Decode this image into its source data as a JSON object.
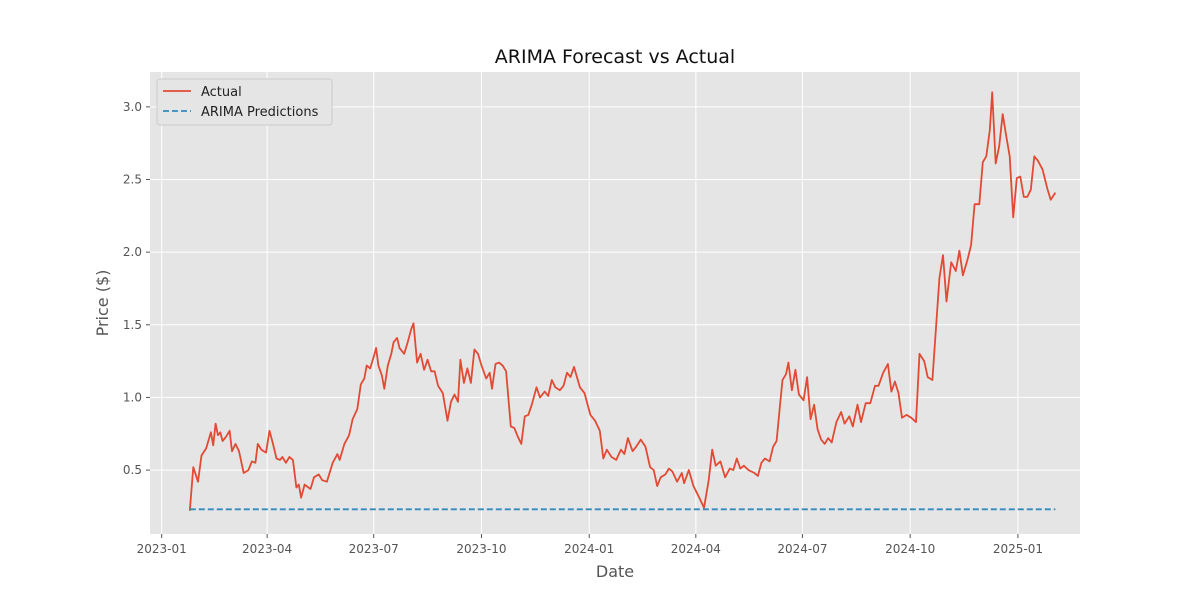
{
  "chart_data": {
    "type": "line",
    "title": "ARIMA Forecast vs Actual",
    "xlabel": "Date",
    "ylabel": "Price ($)",
    "x_ticks": [
      "2023-01",
      "2023-04",
      "2023-07",
      "2023-10",
      "2024-01",
      "2024-04",
      "2024-07",
      "2024-10",
      "2025-01"
    ],
    "y_ticks": [
      "0.5",
      "1.0",
      "1.5",
      "2.0",
      "2.5",
      "3.0"
    ],
    "xlim": [
      "2022-12-22",
      "2025-02-23"
    ],
    "ylim": [
      0.06,
      3.24
    ],
    "grid": true,
    "legend_position": "top-left",
    "colors": {
      "background": "#e5e5e5",
      "grid": "#ffffff",
      "actual": "#e24a33",
      "predictions": "#348abd"
    },
    "series": [
      {
        "name": "Actual",
        "style": "solid",
        "points": [
          [
            "2023-01-25",
            0.22
          ],
          [
            "2023-01-28",
            0.52
          ],
          [
            "2023-02-01",
            0.42
          ],
          [
            "2023-02-04",
            0.6
          ],
          [
            "2023-02-08",
            0.65
          ],
          [
            "2023-02-12",
            0.76
          ],
          [
            "2023-02-14",
            0.67
          ],
          [
            "2023-02-16",
            0.82
          ],
          [
            "2023-02-18",
            0.74
          ],
          [
            "2023-02-20",
            0.76
          ],
          [
            "2023-02-22",
            0.7
          ],
          [
            "2023-02-25",
            0.73
          ],
          [
            "2023-02-28",
            0.77
          ],
          [
            "2023-03-02",
            0.63
          ],
          [
            "2023-03-05",
            0.68
          ],
          [
            "2023-03-08",
            0.63
          ],
          [
            "2023-03-12",
            0.48
          ],
          [
            "2023-03-16",
            0.5
          ],
          [
            "2023-03-19",
            0.56
          ],
          [
            "2023-03-22",
            0.55
          ],
          [
            "2023-03-24",
            0.68
          ],
          [
            "2023-03-27",
            0.64
          ],
          [
            "2023-03-31",
            0.62
          ],
          [
            "2023-04-03",
            0.77
          ],
          [
            "2023-04-06",
            0.68
          ],
          [
            "2023-04-09",
            0.58
          ],
          [
            "2023-04-12",
            0.57
          ],
          [
            "2023-04-14",
            0.59
          ],
          [
            "2023-04-17",
            0.55
          ],
          [
            "2023-04-20",
            0.59
          ],
          [
            "2023-04-23",
            0.57
          ],
          [
            "2023-04-26",
            0.38
          ],
          [
            "2023-04-28",
            0.4
          ],
          [
            "2023-04-30",
            0.31
          ],
          [
            "2023-05-03",
            0.4
          ],
          [
            "2023-05-08",
            0.37
          ],
          [
            "2023-05-11",
            0.45
          ],
          [
            "2023-05-15",
            0.47
          ],
          [
            "2023-05-18",
            0.43
          ],
          [
            "2023-05-22",
            0.42
          ],
          [
            "2023-05-27",
            0.55
          ],
          [
            "2023-05-31",
            0.61
          ],
          [
            "2023-06-02",
            0.57
          ],
          [
            "2023-06-06",
            0.68
          ],
          [
            "2023-06-10",
            0.74
          ],
          [
            "2023-06-13",
            0.85
          ],
          [
            "2023-06-17",
            0.92
          ],
          [
            "2023-06-20",
            1.09
          ],
          [
            "2023-06-23",
            1.13
          ],
          [
            "2023-06-25",
            1.22
          ],
          [
            "2023-06-28",
            1.2
          ],
          [
            "2023-07-01",
            1.28
          ],
          [
            "2023-07-03",
            1.34
          ],
          [
            "2023-07-05",
            1.22
          ],
          [
            "2023-07-08",
            1.15
          ],
          [
            "2023-07-10",
            1.06
          ],
          [
            "2023-07-13",
            1.22
          ],
          [
            "2023-07-16",
            1.3
          ],
          [
            "2023-07-18",
            1.38
          ],
          [
            "2023-07-21",
            1.41
          ],
          [
            "2023-07-23",
            1.34
          ],
          [
            "2023-07-27",
            1.3
          ],
          [
            "2023-07-30",
            1.38
          ],
          [
            "2023-08-02",
            1.47
          ],
          [
            "2023-08-04",
            1.51
          ],
          [
            "2023-08-07",
            1.24
          ],
          [
            "2023-08-10",
            1.3
          ],
          [
            "2023-08-13",
            1.19
          ],
          [
            "2023-08-16",
            1.26
          ],
          [
            "2023-08-19",
            1.18
          ],
          [
            "2023-08-22",
            1.18
          ],
          [
            "2023-08-25",
            1.08
          ],
          [
            "2023-08-29",
            1.03
          ],
          [
            "2023-09-02",
            0.84
          ],
          [
            "2023-09-05",
            0.97
          ],
          [
            "2023-09-08",
            1.02
          ],
          [
            "2023-09-11",
            0.97
          ],
          [
            "2023-09-13",
            1.26
          ],
          [
            "2023-09-16",
            1.1
          ],
          [
            "2023-09-19",
            1.2
          ],
          [
            "2023-09-22",
            1.1
          ],
          [
            "2023-09-25",
            1.33
          ],
          [
            "2023-09-28",
            1.3
          ],
          [
            "2023-10-01",
            1.22
          ],
          [
            "2023-10-05",
            1.13
          ],
          [
            "2023-10-08",
            1.17
          ],
          [
            "2023-10-10",
            1.06
          ],
          [
            "2023-10-13",
            1.23
          ],
          [
            "2023-10-16",
            1.24
          ],
          [
            "2023-10-19",
            1.22
          ],
          [
            "2023-10-22",
            1.18
          ],
          [
            "2023-10-26",
            0.8
          ],
          [
            "2023-10-29",
            0.79
          ],
          [
            "2023-11-01",
            0.73
          ],
          [
            "2023-11-04",
            0.68
          ],
          [
            "2023-11-07",
            0.87
          ],
          [
            "2023-11-10",
            0.88
          ],
          [
            "2023-11-13",
            0.95
          ],
          [
            "2023-11-17",
            1.07
          ],
          [
            "2023-11-20",
            1.0
          ],
          [
            "2023-11-24",
            1.04
          ],
          [
            "2023-11-27",
            1.01
          ],
          [
            "2023-11-30",
            1.12
          ],
          [
            "2023-12-03",
            1.07
          ],
          [
            "2023-12-07",
            1.05
          ],
          [
            "2023-12-10",
            1.08
          ],
          [
            "2023-12-13",
            1.17
          ],
          [
            "2023-12-16",
            1.14
          ],
          [
            "2023-12-19",
            1.21
          ],
          [
            "2023-12-24",
            1.07
          ],
          [
            "2023-12-28",
            1.03
          ],
          [
            "2024-01-02",
            0.88
          ],
          [
            "2024-01-06",
            0.84
          ],
          [
            "2024-01-10",
            0.77
          ],
          [
            "2024-01-13",
            0.58
          ],
          [
            "2024-01-16",
            0.64
          ],
          [
            "2024-01-20",
            0.59
          ],
          [
            "2024-01-24",
            0.57
          ],
          [
            "2024-01-28",
            0.64
          ],
          [
            "2024-01-31",
            0.61
          ],
          [
            "2024-02-03",
            0.72
          ],
          [
            "2024-02-07",
            0.63
          ],
          [
            "2024-02-10",
            0.66
          ],
          [
            "2024-02-14",
            0.71
          ],
          [
            "2024-02-18",
            0.66
          ],
          [
            "2024-02-22",
            0.52
          ],
          [
            "2024-02-25",
            0.5
          ],
          [
            "2024-02-28",
            0.39
          ],
          [
            "2024-03-02",
            0.45
          ],
          [
            "2024-03-06",
            0.47
          ],
          [
            "2024-03-09",
            0.51
          ],
          [
            "2024-03-12",
            0.49
          ],
          [
            "2024-03-16",
            0.42
          ],
          [
            "2024-03-20",
            0.48
          ],
          [
            "2024-03-22",
            0.41
          ],
          [
            "2024-03-26",
            0.5
          ],
          [
            "2024-03-30",
            0.39
          ],
          [
            "2024-04-04",
            0.31
          ],
          [
            "2024-04-08",
            0.24
          ],
          [
            "2024-04-12",
            0.43
          ],
          [
            "2024-04-15",
            0.64
          ],
          [
            "2024-04-18",
            0.53
          ],
          [
            "2024-04-22",
            0.56
          ],
          [
            "2024-04-26",
            0.45
          ],
          [
            "2024-04-30",
            0.51
          ],
          [
            "2024-05-03",
            0.5
          ],
          [
            "2024-05-06",
            0.58
          ],
          [
            "2024-05-09",
            0.51
          ],
          [
            "2024-05-12",
            0.53
          ],
          [
            "2024-05-16",
            0.5
          ],
          [
            "2024-05-21",
            0.48
          ],
          [
            "2024-05-24",
            0.46
          ],
          [
            "2024-05-27",
            0.55
          ],
          [
            "2024-05-30",
            0.58
          ],
          [
            "2024-06-03",
            0.56
          ],
          [
            "2024-06-06",
            0.66
          ],
          [
            "2024-06-09",
            0.7
          ],
          [
            "2024-06-12",
            0.96
          ],
          [
            "2024-06-14",
            1.12
          ],
          [
            "2024-06-17",
            1.16
          ],
          [
            "2024-06-19",
            1.24
          ],
          [
            "2024-06-22",
            1.05
          ],
          [
            "2024-06-25",
            1.19
          ],
          [
            "2024-06-28",
            1.02
          ],
          [
            "2024-07-02",
            0.98
          ],
          [
            "2024-07-05",
            1.14
          ],
          [
            "2024-07-08",
            0.85
          ],
          [
            "2024-07-11",
            0.95
          ],
          [
            "2024-07-14",
            0.78
          ],
          [
            "2024-07-17",
            0.71
          ],
          [
            "2024-07-20",
            0.68
          ],
          [
            "2024-07-23",
            0.72
          ],
          [
            "2024-07-26",
            0.69
          ],
          [
            "2024-07-30",
            0.83
          ],
          [
            "2024-08-03",
            0.9
          ],
          [
            "2024-08-06",
            0.82
          ],
          [
            "2024-08-10",
            0.87
          ],
          [
            "2024-08-13",
            0.8
          ],
          [
            "2024-08-17",
            0.95
          ],
          [
            "2024-08-20",
            0.83
          ],
          [
            "2024-08-24",
            0.96
          ],
          [
            "2024-08-28",
            0.96
          ],
          [
            "2024-09-01",
            1.08
          ],
          [
            "2024-09-04",
            1.08
          ],
          [
            "2024-09-08",
            1.17
          ],
          [
            "2024-09-12",
            1.23
          ],
          [
            "2024-09-15",
            1.04
          ],
          [
            "2024-09-18",
            1.11
          ],
          [
            "2024-09-21",
            1.03
          ],
          [
            "2024-09-24",
            0.86
          ],
          [
            "2024-09-28",
            0.88
          ],
          [
            "2024-10-02",
            0.86
          ],
          [
            "2024-10-06",
            0.83
          ],
          [
            "2024-10-09",
            1.3
          ],
          [
            "2024-10-13",
            1.25
          ],
          [
            "2024-10-16",
            1.14
          ],
          [
            "2024-10-20",
            1.12
          ],
          [
            "2024-10-23",
            1.47
          ],
          [
            "2024-10-26",
            1.82
          ],
          [
            "2024-10-29",
            1.98
          ],
          [
            "2024-11-01",
            1.66
          ],
          [
            "2024-11-05",
            1.93
          ],
          [
            "2024-11-09",
            1.87
          ],
          [
            "2024-11-12",
            2.01
          ],
          [
            "2024-11-15",
            1.84
          ],
          [
            "2024-11-19",
            1.95
          ],
          [
            "2024-11-22",
            2.05
          ],
          [
            "2024-11-25",
            2.33
          ],
          [
            "2024-11-29",
            2.33
          ],
          [
            "2024-12-02",
            2.62
          ],
          [
            "2024-12-05",
            2.66
          ],
          [
            "2024-12-08",
            2.84
          ],
          [
            "2024-12-10",
            3.1
          ],
          [
            "2024-12-13",
            2.61
          ],
          [
            "2024-12-16",
            2.73
          ],
          [
            "2024-12-19",
            2.95
          ],
          [
            "2024-12-22",
            2.8
          ],
          [
            "2024-12-25",
            2.66
          ],
          [
            "2024-12-28",
            2.24
          ],
          [
            "2024-12-31",
            2.51
          ],
          [
            "2025-01-03",
            2.52
          ],
          [
            "2025-01-06",
            2.38
          ],
          [
            "2025-01-09",
            2.38
          ],
          [
            "2025-01-12",
            2.43
          ],
          [
            "2025-01-15",
            2.66
          ],
          [
            "2025-01-18",
            2.63
          ],
          [
            "2025-01-22",
            2.57
          ],
          [
            "2025-01-26",
            2.44
          ],
          [
            "2025-01-29",
            2.36
          ],
          [
            "2025-02-02",
            2.41
          ]
        ]
      },
      {
        "name": "ARIMA Predictions",
        "style": "dashed",
        "points": [
          [
            "2023-01-25",
            0.23
          ],
          [
            "2025-02-02",
            0.23
          ]
        ]
      }
    ]
  }
}
